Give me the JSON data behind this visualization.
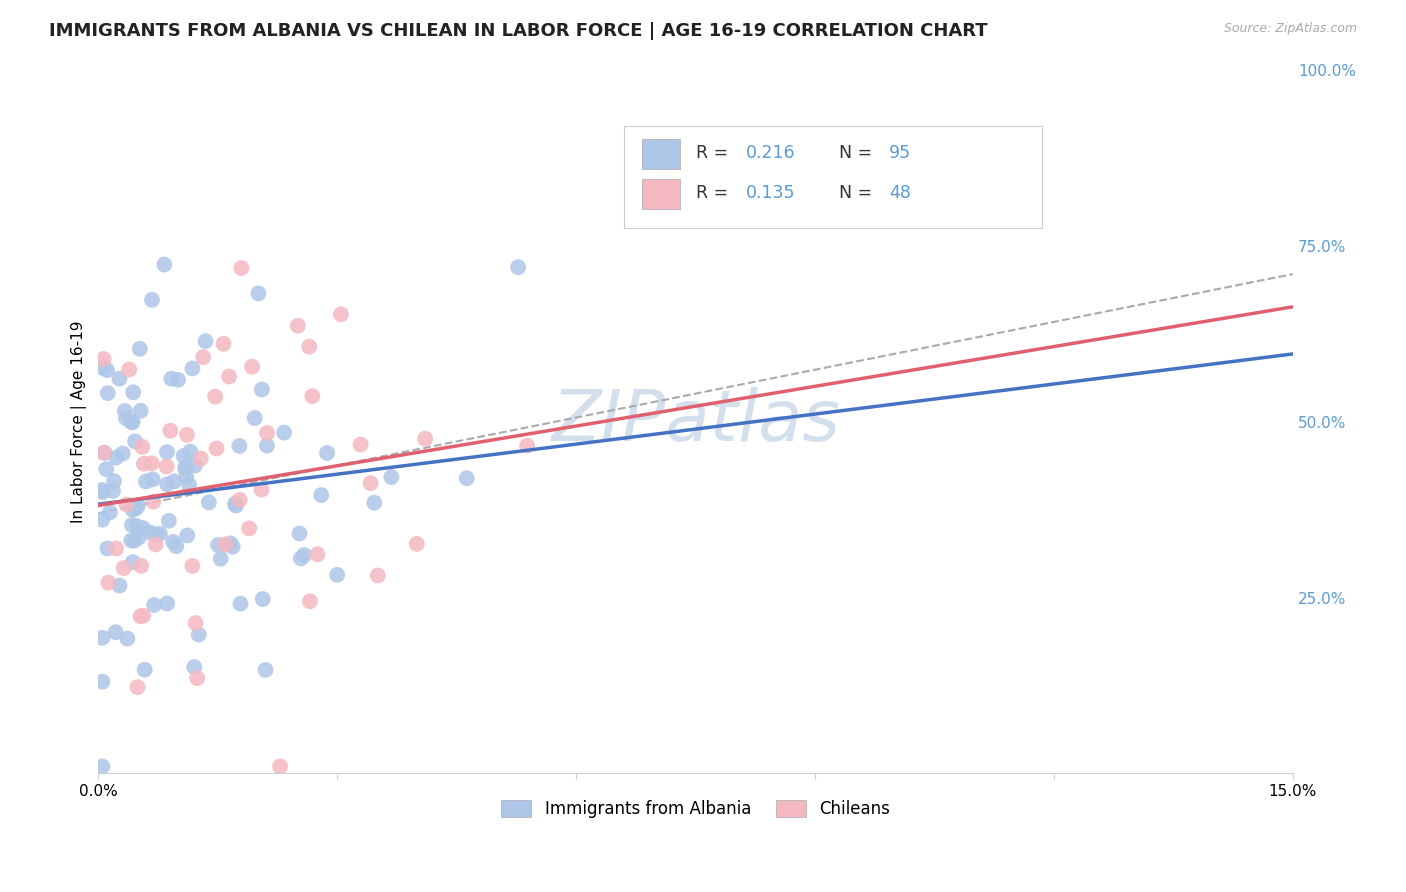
{
  "title": "IMMIGRANTS FROM ALBANIA VS CHILEAN IN LABOR FORCE | AGE 16-19 CORRELATION CHART",
  "source": "Source: ZipAtlas.com",
  "ylabel": "In Labor Force | Age 16-19",
  "xlim": [
    0.0,
    0.15
  ],
  "ylim": [
    0.0,
    1.0
  ],
  "albania_color": "#aec6e8",
  "chilean_color": "#f4b8c1",
  "albania_line_color": "#4472c4",
  "chilean_line_color": "#e06070",
  "dash_line_color": "#aaaaaa",
  "albania_R": 0.216,
  "albania_N": 95,
  "chilean_R": 0.135,
  "chilean_N": 48,
  "legend_label_albania": "Immigrants from Albania",
  "legend_label_chilean": "Chileans",
  "watermark": "ZIPatlas",
  "title_fontsize": 13,
  "axis_label_fontsize": 11,
  "tick_fontsize": 11,
  "legend_fontsize": 12,
  "watermark_fontsize": 52,
  "watermark_color": "#c8d8e8",
  "background_color": "#ffffff",
  "grid_color": "#e0e0e0",
  "right_tick_color": "#5b9bd5",
  "source_color": "#aaaaaa"
}
